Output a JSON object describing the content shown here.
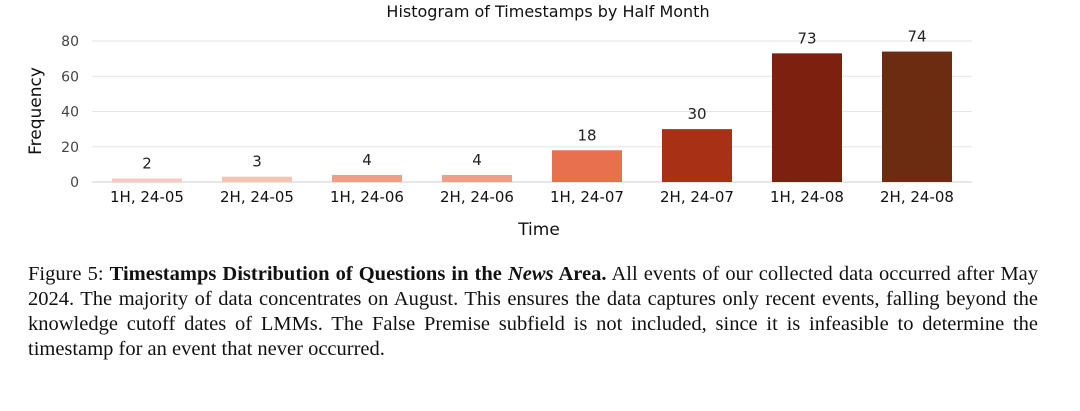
{
  "chart_data": {
    "type": "bar",
    "title": "Histogram of Timestamps by Half Month",
    "xlabel": "Time",
    "ylabel": "Frequency",
    "ylim": [
      0,
      80
    ],
    "yticks": [
      0,
      20,
      40,
      60,
      80
    ],
    "grid": true,
    "categories": [
      "1H, 24-05",
      "2H, 24-05",
      "1H, 24-06",
      "2H, 24-06",
      "1H, 24-07",
      "2H, 24-07",
      "1H, 24-08",
      "2H, 24-08"
    ],
    "values": [
      2,
      3,
      4,
      4,
      18,
      30,
      73,
      74
    ],
    "colors": [
      "#f8c9bd",
      "#f6c2b4",
      "#ef9f86",
      "#ef9f86",
      "#e8704f",
      "#a83014",
      "#7e200f",
      "#6b2c12"
    ]
  },
  "caption": {
    "label": "Figure 5:",
    "bold_part1": "Timestamps Distribution of Questions in the",
    "bold_italic": "News",
    "bold_part2": "Area.",
    "text": "All events of our collected data occurred after May 2024. The majority of data concentrates on August. This ensures the data captures only recent events, falling beyond the knowledge cutoff dates of LMMs. The False Premise subfield is not included, since it is infeasible to determine the timestamp for an event that never occurred."
  }
}
